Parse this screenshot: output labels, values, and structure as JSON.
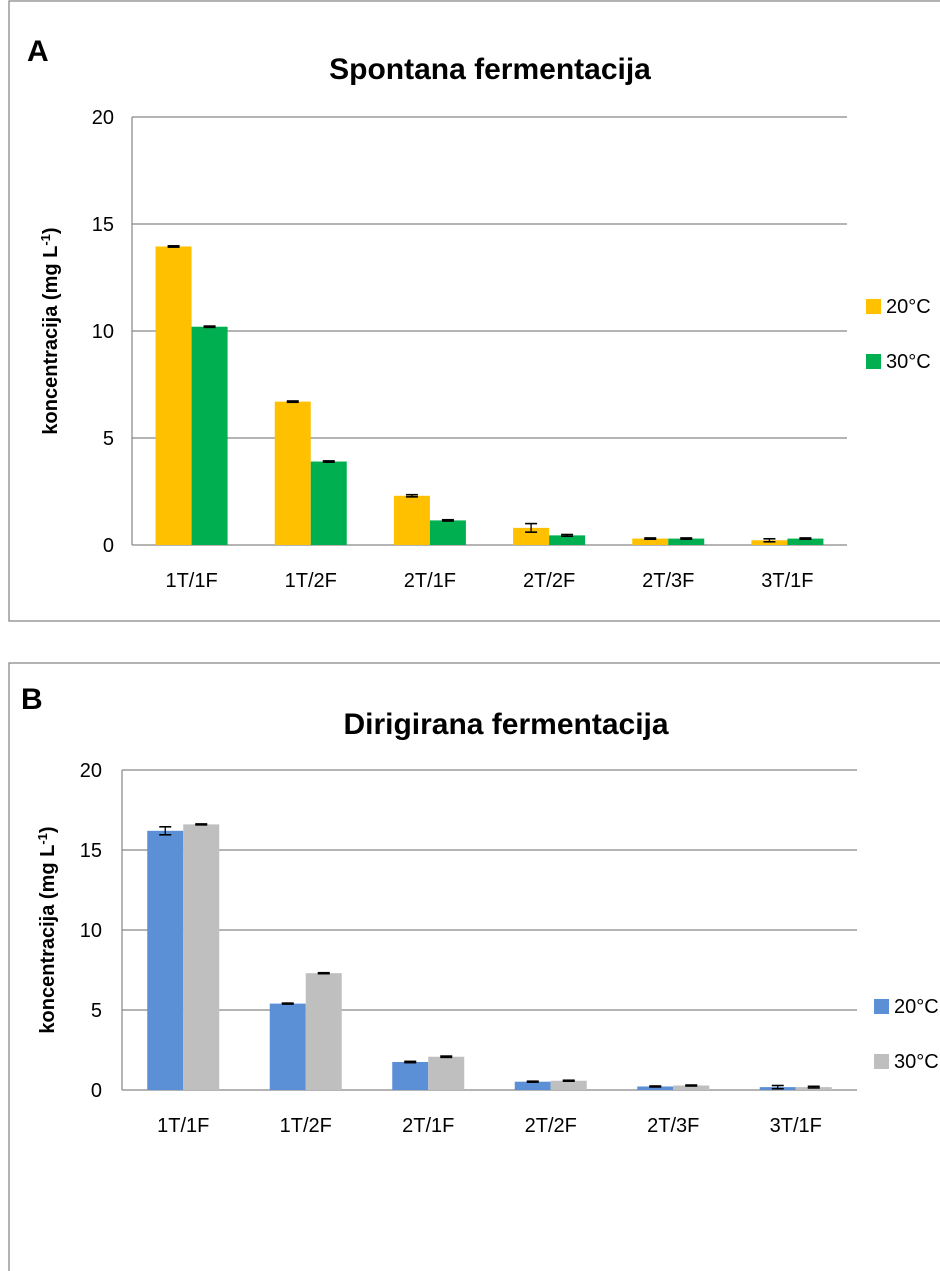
{
  "chart_data": [
    {
      "type": "bar",
      "panel_label": "A",
      "title": "Spontana fermentacija",
      "ylabel": "koncentracija (mg L",
      "ylabel_sup": "-1",
      "ylabel_end": ")",
      "xlabel": "",
      "ylim": [
        0,
        20
      ],
      "yticks": [
        0,
        5,
        10,
        15,
        20
      ],
      "grid": true,
      "legend_position": "right",
      "categories": [
        "1T/1F",
        "1T/2F",
        "2T/1F",
        "2T/2F",
        "2T/3F",
        "3T/1F"
      ],
      "series": [
        {
          "name": "20°C",
          "color": "#FFC000",
          "values": [
            13.95,
            6.7,
            2.3,
            0.8,
            0.3,
            0.22
          ],
          "errors": [
            0.03,
            0.03,
            0.05,
            0.2,
            0.03,
            0.07
          ]
        },
        {
          "name": "30°C",
          "color": "#00B050",
          "values": [
            10.2,
            3.9,
            1.15,
            0.45,
            0.3,
            0.3
          ],
          "errors": [
            0.03,
            0.03,
            0.03,
            0.04,
            0.03,
            0.03
          ]
        }
      ]
    },
    {
      "type": "bar",
      "panel_label": "B",
      "title": "Dirigirana fermentacija",
      "ylabel": "koncentracija (mg L",
      "ylabel_sup": "-1",
      "ylabel_end": ")",
      "xlabel": "",
      "ylim": [
        0,
        20
      ],
      "yticks": [
        0,
        5,
        10,
        15,
        20
      ],
      "grid": true,
      "legend_position": "right",
      "categories": [
        "1T/1F",
        "1T/2F",
        "2T/1F",
        "2T/2F",
        "2T/3F",
        "3T/1F"
      ],
      "series": [
        {
          "name": "20°C",
          "color": "#5B8FD6",
          "values": [
            16.2,
            5.4,
            1.75,
            0.52,
            0.22,
            0.18
          ],
          "errors": [
            0.25,
            0.03,
            0.04,
            0.03,
            0.03,
            0.1
          ]
        },
        {
          "name": "30°C",
          "color": "#BFBFBF",
          "values": [
            16.6,
            7.3,
            2.08,
            0.58,
            0.28,
            0.18
          ],
          "errors": [
            0.03,
            0.03,
            0.04,
            0.03,
            0.03,
            0.05
          ]
        }
      ]
    }
  ]
}
